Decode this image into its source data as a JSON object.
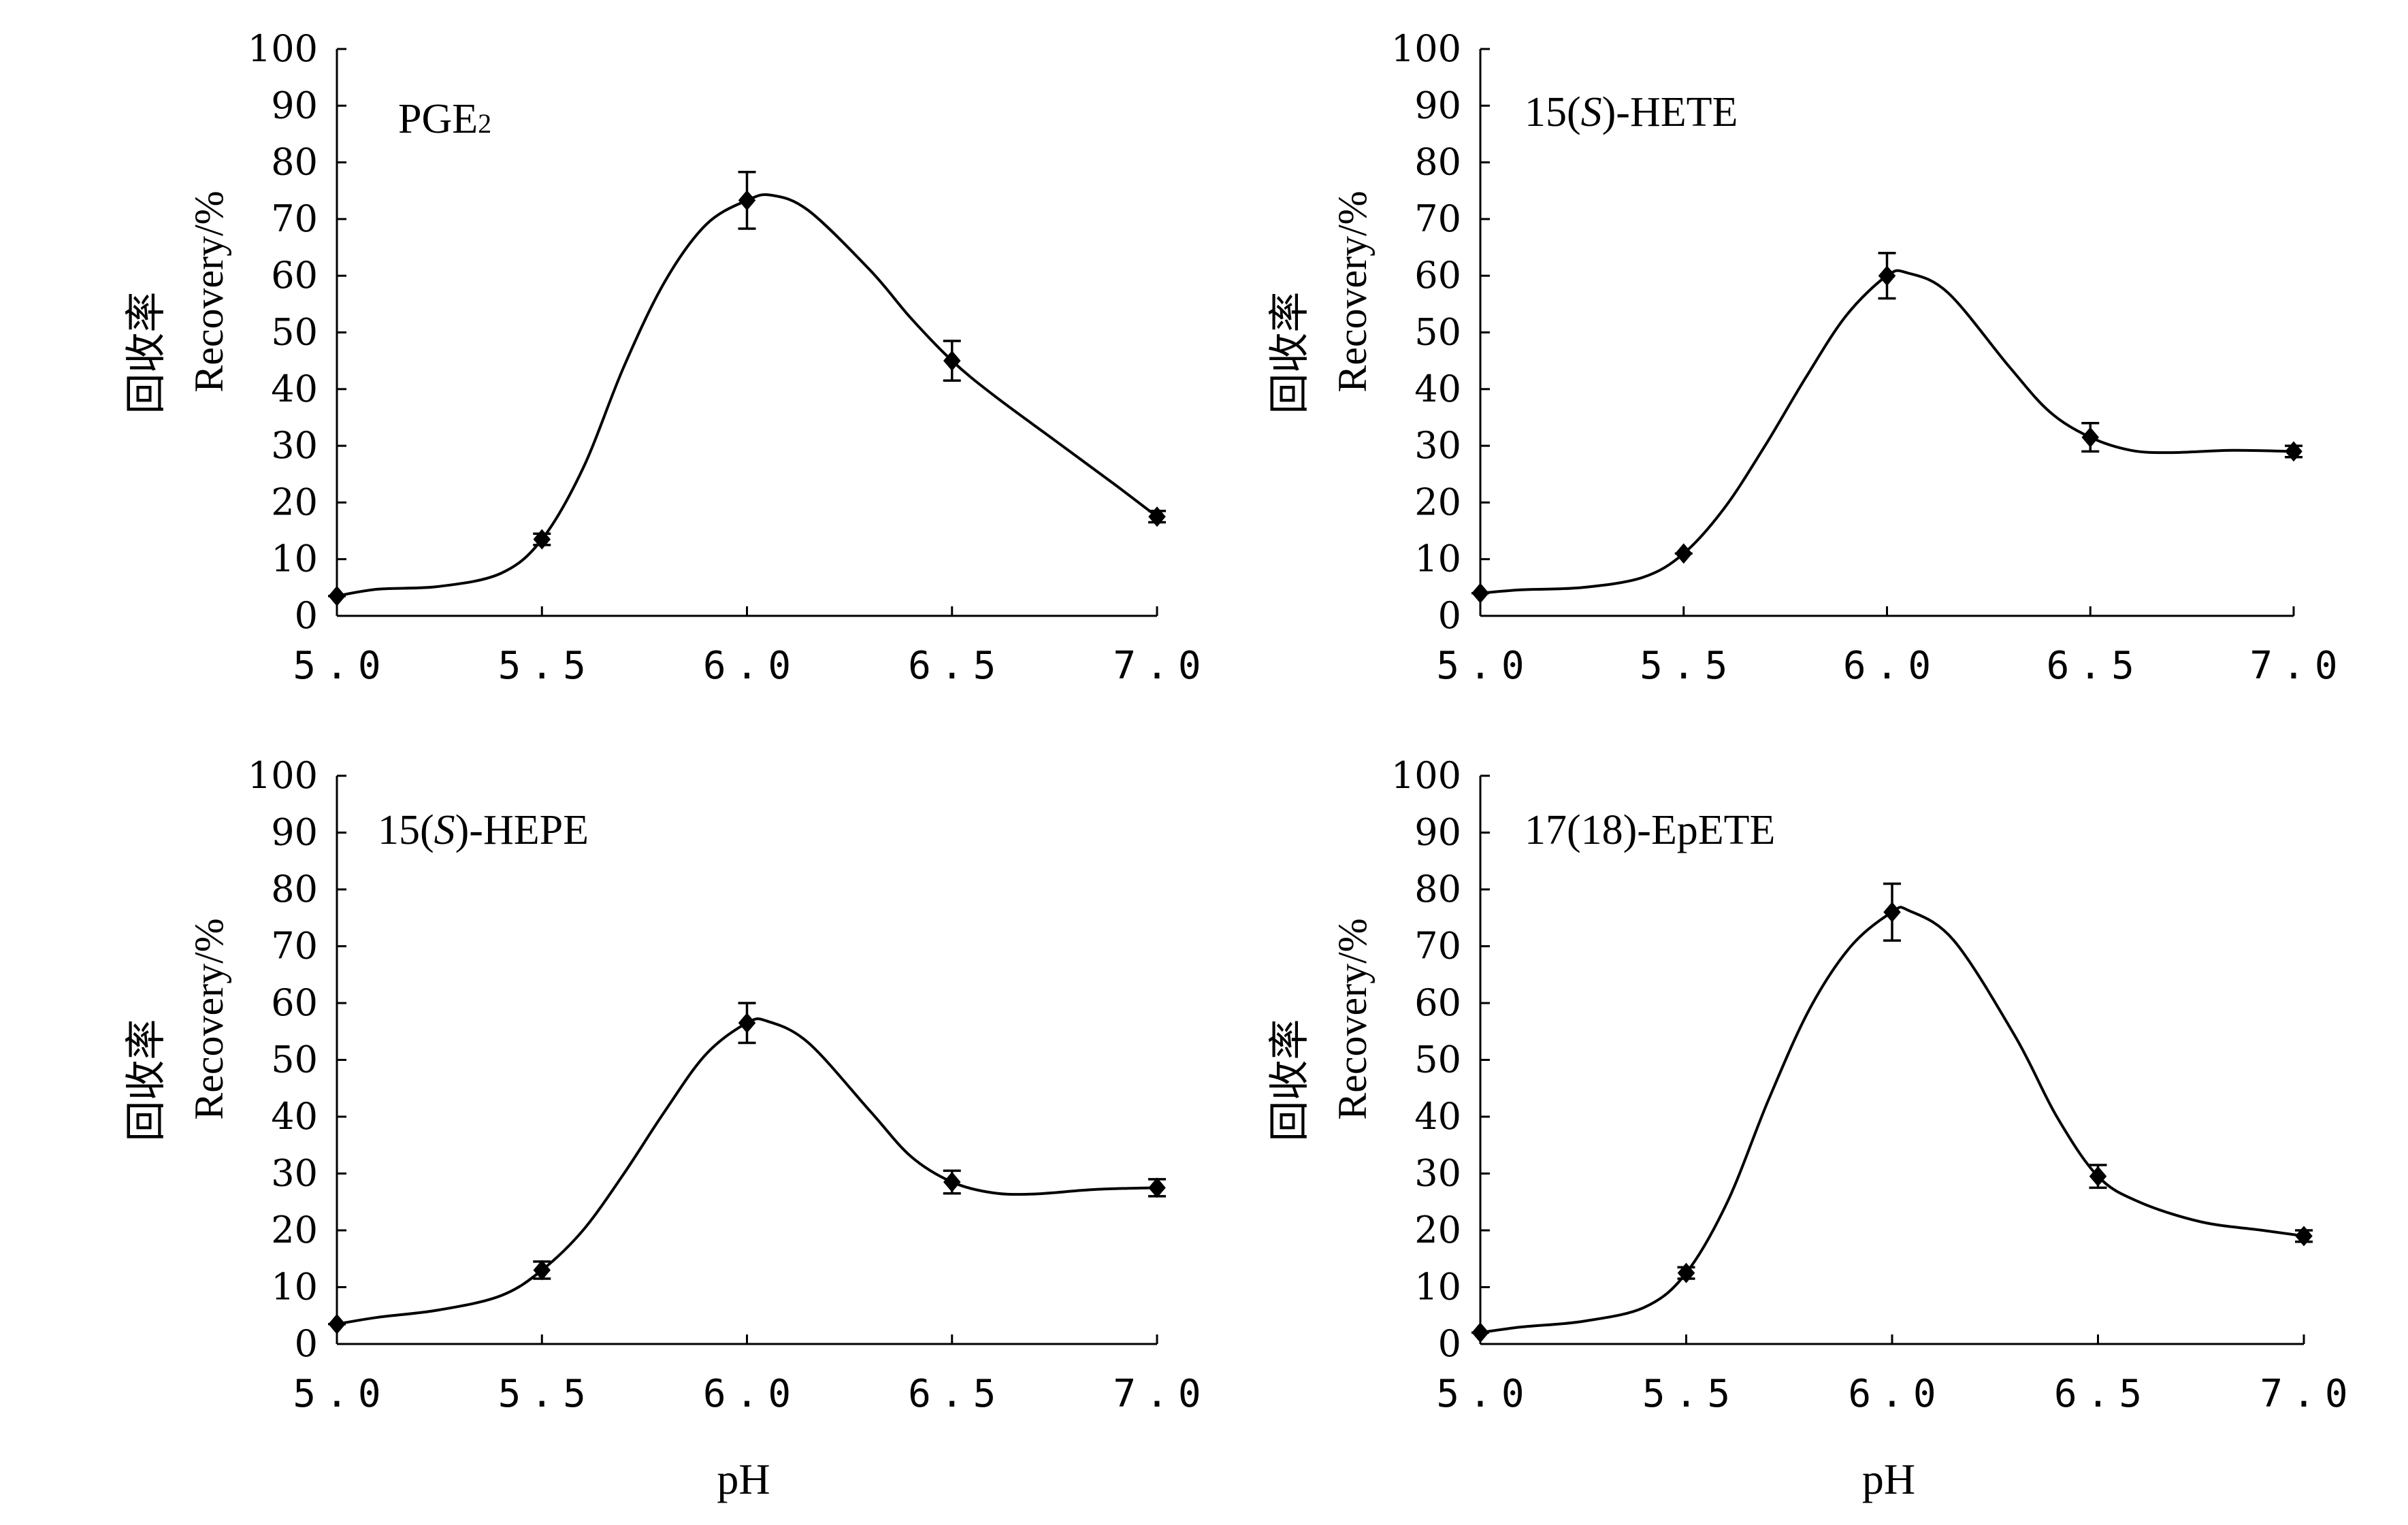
{
  "figure": {
    "ylabel_cn": "回收率",
    "ylabel_en": "Recovery/%",
    "xlabel": "pH"
  },
  "chart_data": [
    {
      "type": "line",
      "title": "PGE2",
      "title_main": "PGE",
      "title_sub": "2",
      "x": [
        5.0,
        5.5,
        6.0,
        6.5,
        7.0
      ],
      "x_tick_labels": [
        "5.0",
        "5.5",
        "6.0",
        "6.5",
        "7.0"
      ],
      "y_ticks": [
        0,
        10,
        20,
        30,
        40,
        50,
        60,
        70,
        80,
        90,
        100
      ],
      "ylim": [
        0,
        100
      ],
      "xlim": [
        5.0,
        7.0
      ],
      "xlabel": "",
      "ylabel": "回收率 Recovery/%",
      "values": [
        3.5,
        13.5,
        73.3,
        45.0,
        17.5
      ],
      "errors": [
        0.5,
        1.0,
        5.0,
        3.5,
        1.0
      ],
      "curve": [
        [
          5.0,
          3.5
        ],
        [
          5.1,
          4.7
        ],
        [
          5.25,
          5.2
        ],
        [
          5.4,
          7.5
        ],
        [
          5.5,
          13.5
        ],
        [
          5.6,
          26
        ],
        [
          5.7,
          44
        ],
        [
          5.8,
          59
        ],
        [
          5.9,
          69
        ],
        [
          6.0,
          73.3
        ],
        [
          6.06,
          74.2
        ],
        [
          6.15,
          71.5
        ],
        [
          6.3,
          61
        ],
        [
          6.4,
          52.5
        ],
        [
          6.5,
          45.0
        ],
        [
          6.6,
          39
        ],
        [
          6.75,
          31
        ],
        [
          6.9,
          23
        ],
        [
          7.0,
          17.5
        ]
      ]
    },
    {
      "type": "line",
      "title": "15(S)-HETE",
      "title_prefix": "15(",
      "title_italic": "S",
      "title_suffix": ")-HETE",
      "x": [
        5.0,
        5.5,
        6.0,
        6.5,
        7.0
      ],
      "x_tick_labels": [
        "5.0",
        "5.5",
        "6.0",
        "6.5",
        "7.0"
      ],
      "y_ticks": [
        0,
        10,
        20,
        30,
        40,
        50,
        60,
        70,
        80,
        90,
        100
      ],
      "ylim": [
        0,
        100
      ],
      "xlim": [
        5.0,
        7.0
      ],
      "xlabel": "",
      "ylabel": "回收率 Recovery/%",
      "values": [
        4.0,
        11.0,
        60.0,
        31.5,
        29.0
      ],
      "errors": [
        0.5,
        0.8,
        4.0,
        2.5,
        1.0
      ],
      "curve": [
        [
          5.0,
          4.0
        ],
        [
          5.1,
          4.6
        ],
        [
          5.25,
          5.0
        ],
        [
          5.4,
          6.8
        ],
        [
          5.5,
          11.0
        ],
        [
          5.6,
          19
        ],
        [
          5.7,
          30
        ],
        [
          5.8,
          42
        ],
        [
          5.9,
          53
        ],
        [
          6.0,
          60.0
        ],
        [
          6.05,
          60.5
        ],
        [
          6.15,
          57
        ],
        [
          6.3,
          44
        ],
        [
          6.4,
          36
        ],
        [
          6.5,
          31.5
        ],
        [
          6.6,
          29.2
        ],
        [
          6.7,
          28.8
        ],
        [
          6.85,
          29.2
        ],
        [
          7.0,
          29.0
        ]
      ]
    },
    {
      "type": "line",
      "title": "15(S)-HEPE",
      "title_prefix": "15(",
      "title_italic": "S",
      "title_suffix": ")-HEPE",
      "x": [
        5.0,
        5.5,
        6.0,
        6.5,
        7.0
      ],
      "x_tick_labels": [
        "5.0",
        "5.5",
        "6.0",
        "6.5",
        "7.0"
      ],
      "y_ticks": [
        0,
        10,
        20,
        30,
        40,
        50,
        60,
        70,
        80,
        90,
        100
      ],
      "ylim": [
        0,
        100
      ],
      "xlim": [
        5.0,
        7.0
      ],
      "xlabel": "pH",
      "ylabel": "回收率 Recovery/%",
      "values": [
        3.5,
        13.0,
        56.5,
        28.5,
        27.5
      ],
      "errors": [
        0.5,
        1.5,
        3.5,
        2.0,
        1.5
      ],
      "curve": [
        [
          5.0,
          3.5
        ],
        [
          5.1,
          4.7
        ],
        [
          5.25,
          6.0
        ],
        [
          5.4,
          8.5
        ],
        [
          5.5,
          13.0
        ],
        [
          5.6,
          20
        ],
        [
          5.7,
          30
        ],
        [
          5.8,
          41
        ],
        [
          5.9,
          51
        ],
        [
          6.0,
          56.5
        ],
        [
          6.05,
          56.8
        ],
        [
          6.15,
          53
        ],
        [
          6.3,
          41
        ],
        [
          6.4,
          33
        ],
        [
          6.5,
          28.5
        ],
        [
          6.6,
          26.6
        ],
        [
          6.7,
          26.4
        ],
        [
          6.85,
          27.2
        ],
        [
          7.0,
          27.5
        ]
      ]
    },
    {
      "type": "line",
      "title": "17(18)-EpETE",
      "x": [
        5.0,
        5.5,
        6.0,
        6.5,
        7.0
      ],
      "x_tick_labels": [
        "5.0",
        "5.5",
        "6.0",
        "6.5",
        "7.0"
      ],
      "y_ticks": [
        0,
        10,
        20,
        30,
        40,
        50,
        60,
        70,
        80,
        90,
        100
      ],
      "ylim": [
        0,
        100
      ],
      "xlim": [
        5.0,
        7.0
      ],
      "xlabel": "pH",
      "ylabel": "回收率 Recovery/%",
      "values": [
        2.0,
        12.5,
        76.0,
        29.5,
        19.0
      ],
      "errors": [
        0.5,
        1.0,
        5.0,
        2.0,
        1.0
      ],
      "curve": [
        [
          5.0,
          2.0
        ],
        [
          5.1,
          3.0
        ],
        [
          5.25,
          4.0
        ],
        [
          5.4,
          6.5
        ],
        [
          5.5,
          12.5
        ],
        [
          5.6,
          25
        ],
        [
          5.7,
          43
        ],
        [
          5.8,
          59
        ],
        [
          5.9,
          70
        ],
        [
          6.0,
          76.0
        ],
        [
          6.04,
          76.3
        ],
        [
          6.15,
          71
        ],
        [
          6.3,
          54
        ],
        [
          6.4,
          40
        ],
        [
          6.5,
          29.5
        ],
        [
          6.6,
          25
        ],
        [
          6.75,
          21.5
        ],
        [
          6.9,
          20
        ],
        [
          7.0,
          19.0
        ]
      ]
    }
  ]
}
